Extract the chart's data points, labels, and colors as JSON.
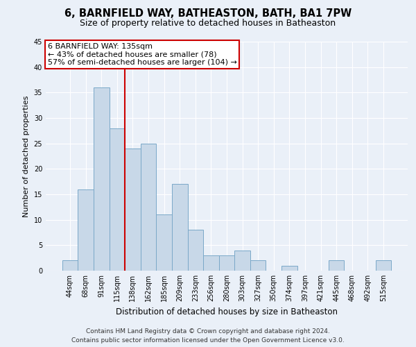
{
  "title": "6, BARNFIELD WAY, BATHEASTON, BATH, BA1 7PW",
  "subtitle": "Size of property relative to detached houses in Batheaston",
  "xlabel": "Distribution of detached houses by size in Batheaston",
  "ylabel": "Number of detached properties",
  "categories": [
    "44sqm",
    "68sqm",
    "91sqm",
    "115sqm",
    "138sqm",
    "162sqm",
    "185sqm",
    "209sqm",
    "233sqm",
    "256sqm",
    "280sqm",
    "303sqm",
    "327sqm",
    "350sqm",
    "374sqm",
    "397sqm",
    "421sqm",
    "445sqm",
    "468sqm",
    "492sqm",
    "515sqm"
  ],
  "values": [
    2,
    16,
    36,
    28,
    24,
    25,
    11,
    17,
    8,
    3,
    3,
    4,
    2,
    0,
    1,
    0,
    0,
    2,
    0,
    0,
    2
  ],
  "bar_color": "#c8d8e8",
  "bar_edge_color": "#7aa8c8",
  "vline_color": "#cc0000",
  "vline_x": 3.5,
  "annotation_text": "6 BARNFIELD WAY: 135sqm\n← 43% of detached houses are smaller (78)\n57% of semi-detached houses are larger (104) →",
  "annotation_box_color": "#ffffff",
  "annotation_box_edge_color": "#cc0000",
  "ylim": [
    0,
    45
  ],
  "yticks": [
    0,
    5,
    10,
    15,
    20,
    25,
    30,
    35,
    40,
    45
  ],
  "background_color": "#eaf0f8",
  "grid_color": "#ffffff",
  "footer_line1": "Contains HM Land Registry data © Crown copyright and database right 2024.",
  "footer_line2": "Contains public sector information licensed under the Open Government Licence v3.0.",
  "title_fontsize": 10.5,
  "subtitle_fontsize": 9,
  "xlabel_fontsize": 8.5,
  "ylabel_fontsize": 8,
  "tick_fontsize": 7,
  "footer_fontsize": 6.5,
  "annotation_fontsize": 8
}
